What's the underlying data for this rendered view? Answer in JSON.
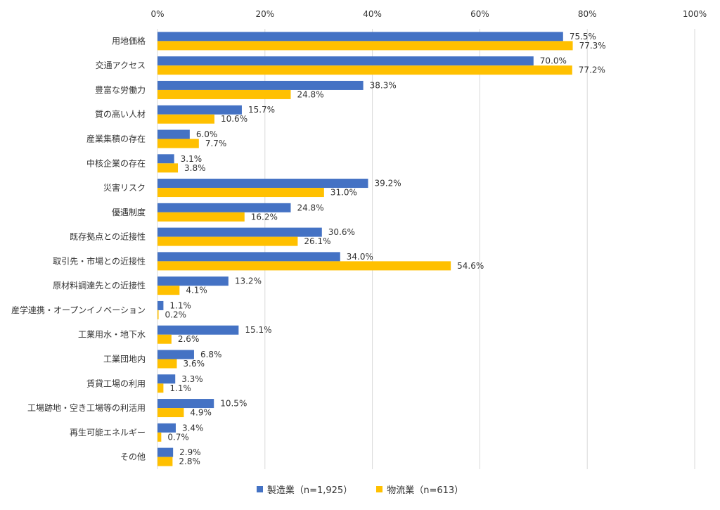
{
  "chart_data": {
    "type": "bar",
    "orientation": "horizontal",
    "categories": [
      "用地価格",
      "交通アクセス",
      "豊富な労働力",
      "質の高い人材",
      "産業集積の存在",
      "中核企業の存在",
      "災害リスク",
      "優遇制度",
      "既存拠点との近接性",
      "取引先・市場との近接性",
      "原材料調達先との近接性",
      "産学連携・オープンイノベーション",
      "工業用水・地下水",
      "工業団地内",
      "賃貸工場の利用",
      "工場跡地・空き工場等の利活用",
      "再生可能エネルギー",
      "その他"
    ],
    "series": [
      {
        "name": "製造業（n=1,925）",
        "color": "#4472C4",
        "values": [
          75.5,
          70.0,
          38.3,
          15.7,
          6.0,
          3.1,
          39.2,
          24.8,
          30.6,
          34.0,
          13.2,
          1.1,
          15.1,
          6.8,
          3.3,
          10.5,
          3.4,
          2.9
        ],
        "labels": [
          "75.5%",
          "70.0%",
          "38.3%",
          "15.7%",
          "6.0%",
          "3.1%",
          "39.2%",
          "24.8%",
          "30.6%",
          "34.0%",
          "13.2%",
          "1.1%",
          "15.1%",
          "6.8%",
          "3.3%",
          "10.5%",
          "3.4%",
          "2.9%"
        ]
      },
      {
        "name": "物流業（n=613）",
        "color": "#FFC000",
        "values": [
          77.3,
          77.2,
          24.8,
          10.6,
          7.7,
          3.8,
          31.0,
          16.2,
          26.1,
          54.6,
          4.1,
          0.2,
          2.6,
          3.6,
          1.1,
          4.9,
          0.7,
          2.8
        ],
        "labels": [
          "77.3%",
          "77.2%",
          "24.8%",
          "10.6%",
          "7.7%",
          "3.8%",
          "31.0%",
          "16.2%",
          "26.1%",
          "54.6%",
          "4.1%",
          "0.2%",
          "2.6%",
          "3.6%",
          "1.1%",
          "4.9%",
          "0.7%",
          "2.8%"
        ]
      }
    ],
    "xlim": [
      0,
      100
    ],
    "x_ticks": [
      0,
      20,
      40,
      60,
      80,
      100
    ],
    "x_tick_labels": [
      "0%",
      "20%",
      "40%",
      "60%",
      "80%",
      "100%"
    ],
    "x_axis_position": "top",
    "grid": true,
    "gridline_color": "#D9D9D9",
    "legend_position": "bottom"
  }
}
